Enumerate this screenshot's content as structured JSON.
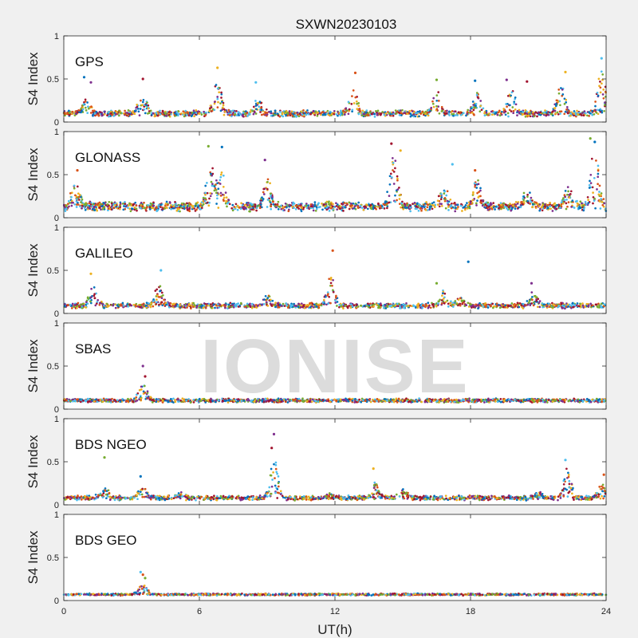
{
  "title": "SXWN20230103",
  "watermark": "IONISE",
  "xlabel": "UT(h)",
  "ylabel": "S4 Index",
  "colors": [
    "#0072BD",
    "#D95319",
    "#EDB120",
    "#7E2F8E",
    "#77AC30",
    "#4DBEEE",
    "#A2142F"
  ],
  "chart_data": {
    "type": "scatter",
    "title": "SXWN20230103",
    "xlabel": "UT(h)",
    "ylabel": "S4 Index",
    "xlim": [
      0,
      24
    ],
    "ylim": [
      0,
      1
    ],
    "xticks": [
      0,
      6,
      12,
      18,
      24
    ],
    "yticks": [
      0,
      0.5,
      1
    ],
    "xtick_labels": [
      "0",
      "6",
      "12",
      "18",
      "24"
    ],
    "ytick_labels": [
      "0",
      "0.5",
      "1"
    ],
    "grid": false,
    "legend": "none",
    "panels": [
      {
        "name": "GPS",
        "baseline": 0.1,
        "noise": 0.04,
        "density": 1.0,
        "bumps": [
          [
            1.0,
            0.3
          ],
          [
            3.5,
            0.35
          ],
          [
            6.8,
            0.5
          ],
          [
            8.6,
            0.3
          ],
          [
            12.8,
            0.4
          ],
          [
            16.5,
            0.35
          ],
          [
            18.3,
            0.35
          ],
          [
            19.8,
            0.4
          ],
          [
            22.0,
            0.45
          ],
          [
            23.8,
            0.6
          ]
        ],
        "peaks": [
          [
            0.9,
            0.52
          ],
          [
            1.2,
            0.46
          ],
          [
            3.5,
            0.5
          ],
          [
            6.8,
            0.63
          ],
          [
            8.5,
            0.46
          ],
          [
            12.9,
            0.57
          ],
          [
            16.5,
            0.49
          ],
          [
            18.2,
            0.48
          ],
          [
            19.6,
            0.49
          ],
          [
            20.5,
            0.47
          ],
          [
            22.2,
            0.58
          ],
          [
            23.8,
            0.74
          ]
        ]
      },
      {
        "name": "GLONASS",
        "baseline": 0.13,
        "noise": 0.06,
        "density": 1.1,
        "bumps": [
          [
            0.5,
            0.4
          ],
          [
            6.5,
            0.6
          ],
          [
            7.0,
            0.55
          ],
          [
            9.0,
            0.45
          ],
          [
            14.6,
            0.75
          ],
          [
            16.8,
            0.35
          ],
          [
            18.3,
            0.45
          ],
          [
            20.5,
            0.3
          ],
          [
            22.3,
            0.35
          ],
          [
            23.5,
            0.8
          ]
        ],
        "peaks": [
          [
            0.6,
            0.55
          ],
          [
            6.4,
            0.83
          ],
          [
            7.0,
            0.82
          ],
          [
            8.9,
            0.67
          ],
          [
            14.5,
            0.86
          ],
          [
            14.9,
            0.78
          ],
          [
            17.2,
            0.62
          ],
          [
            18.2,
            0.55
          ],
          [
            23.3,
            0.92
          ],
          [
            23.5,
            0.88
          ]
        ]
      },
      {
        "name": "GALILEO",
        "baseline": 0.09,
        "noise": 0.035,
        "density": 0.95,
        "bumps": [
          [
            1.3,
            0.3
          ],
          [
            4.2,
            0.35
          ],
          [
            9.0,
            0.22
          ],
          [
            11.8,
            0.45
          ],
          [
            16.8,
            0.25
          ],
          [
            17.5,
            0.2
          ],
          [
            20.8,
            0.25
          ]
        ],
        "peaks": [
          [
            1.2,
            0.46
          ],
          [
            4.3,
            0.5
          ],
          [
            11.9,
            0.73
          ],
          [
            16.5,
            0.35
          ],
          [
            17.9,
            0.6
          ],
          [
            20.7,
            0.35
          ]
        ]
      },
      {
        "name": "SBAS",
        "baseline": 0.1,
        "noise": 0.025,
        "density": 1.0,
        "bumps": [
          [
            3.5,
            0.3
          ]
        ],
        "peaks": [
          [
            3.5,
            0.5
          ],
          [
            3.6,
            0.38
          ]
        ]
      },
      {
        "name": "BDS NGEO",
        "baseline": 0.08,
        "noise": 0.03,
        "density": 0.95,
        "bumps": [
          [
            1.8,
            0.2
          ],
          [
            3.5,
            0.22
          ],
          [
            5.2,
            0.15
          ],
          [
            9.3,
            0.55
          ],
          [
            11.8,
            0.12
          ],
          [
            13.8,
            0.25
          ],
          [
            15.0,
            0.2
          ],
          [
            21.0,
            0.15
          ],
          [
            22.3,
            0.42
          ],
          [
            23.8,
            0.25
          ]
        ],
        "peaks": [
          [
            1.8,
            0.55
          ],
          [
            3.4,
            0.33
          ],
          [
            9.3,
            0.82
          ],
          [
            9.2,
            0.66
          ],
          [
            13.7,
            0.42
          ],
          [
            22.2,
            0.52
          ],
          [
            23.9,
            0.35
          ]
        ]
      },
      {
        "name": "BDS GEO",
        "baseline": 0.07,
        "noise": 0.013,
        "density": 0.8,
        "bumps": [
          [
            3.5,
            0.2
          ]
        ],
        "peaks": [
          [
            3.4,
            0.33
          ],
          [
            3.5,
            0.3
          ],
          [
            3.6,
            0.26
          ]
        ]
      }
    ]
  }
}
